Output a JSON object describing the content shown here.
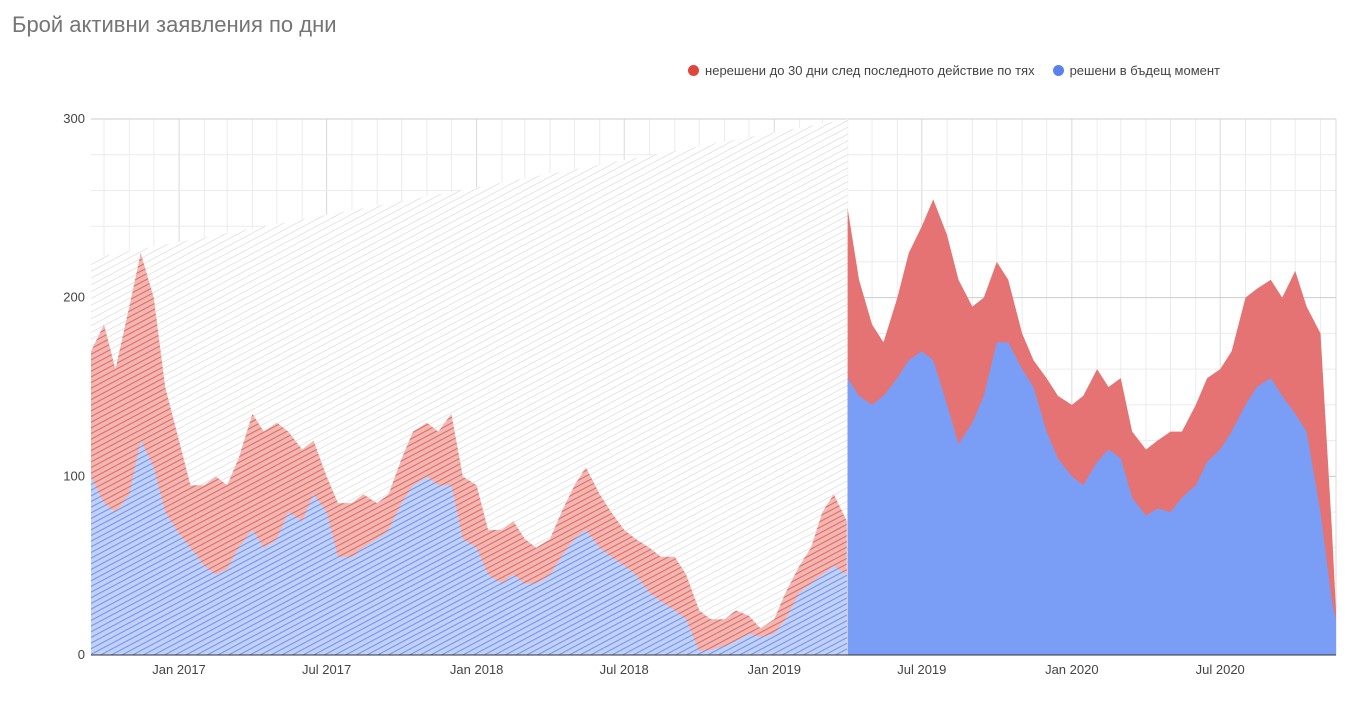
{
  "chart_data": {
    "type": "area",
    "stacked": true,
    "title": "Брой активни заявления по дни",
    "xlabel": "",
    "ylabel": "",
    "ylim": [
      0,
      300
    ],
    "yticks": [
      0,
      100,
      200,
      300
    ],
    "xrange": [
      "2016-09-15",
      "2020-11-20"
    ],
    "xticks": [
      {
        "date": "2017-01-01",
        "label": "Jan 2017"
      },
      {
        "date": "2017-07-01",
        "label": "Jul 2017"
      },
      {
        "date": "2018-01-01",
        "label": "Jan 2018"
      },
      {
        "date": "2018-07-01",
        "label": "Jul 2018"
      },
      {
        "date": "2019-01-01",
        "label": "Jan 2019"
      },
      {
        "date": "2019-07-01",
        "label": "Jul 2019"
      },
      {
        "date": "2020-01-01",
        "label": "Jan 2020"
      },
      {
        "date": "2020-07-01",
        "label": "Jul 2020"
      }
    ],
    "hatched_until": "2019-04-01",
    "legend_position": "top-right",
    "series": [
      {
        "name": "решени в бъдещ момент",
        "color": "#7a9ef5",
        "points": [
          [
            "2016-09-15",
            100
          ],
          [
            "2016-10-01",
            85
          ],
          [
            "2016-10-15",
            80
          ],
          [
            "2016-11-01",
            90
          ],
          [
            "2016-11-15",
            120
          ],
          [
            "2016-12-01",
            105
          ],
          [
            "2016-12-15",
            80
          ],
          [
            "2017-01-01",
            68
          ],
          [
            "2017-01-15",
            60
          ],
          [
            "2017-02-01",
            50
          ],
          [
            "2017-02-15",
            45
          ],
          [
            "2017-03-01",
            48
          ],
          [
            "2017-03-15",
            60
          ],
          [
            "2017-04-01",
            70
          ],
          [
            "2017-04-15",
            60
          ],
          [
            "2017-05-01",
            65
          ],
          [
            "2017-05-15",
            80
          ],
          [
            "2017-06-01",
            75
          ],
          [
            "2017-06-15",
            90
          ],
          [
            "2017-07-01",
            80
          ],
          [
            "2017-07-15",
            55
          ],
          [
            "2017-08-01",
            55
          ],
          [
            "2017-08-15",
            60
          ],
          [
            "2017-09-01",
            65
          ],
          [
            "2017-09-15",
            70
          ],
          [
            "2017-10-01",
            85
          ],
          [
            "2017-10-15",
            95
          ],
          [
            "2017-11-01",
            100
          ],
          [
            "2017-11-15",
            95
          ],
          [
            "2017-12-01",
            95
          ],
          [
            "2017-12-15",
            65
          ],
          [
            "2018-01-01",
            60
          ],
          [
            "2018-01-15",
            45
          ],
          [
            "2018-02-01",
            40
          ],
          [
            "2018-02-15",
            45
          ],
          [
            "2018-03-01",
            40
          ],
          [
            "2018-03-15",
            40
          ],
          [
            "2018-04-01",
            45
          ],
          [
            "2018-04-15",
            55
          ],
          [
            "2018-05-01",
            65
          ],
          [
            "2018-05-15",
            70
          ],
          [
            "2018-06-01",
            60
          ],
          [
            "2018-06-15",
            55
          ],
          [
            "2018-07-01",
            50
          ],
          [
            "2018-07-15",
            45
          ],
          [
            "2018-08-01",
            35
          ],
          [
            "2018-08-15",
            30
          ],
          [
            "2018-09-01",
            25
          ],
          [
            "2018-09-15",
            20
          ],
          [
            "2018-10-01",
            2
          ],
          [
            "2018-10-15",
            3
          ],
          [
            "2018-11-01",
            5
          ],
          [
            "2018-11-15",
            8
          ],
          [
            "2018-12-01",
            12
          ],
          [
            "2018-12-15",
            10
          ],
          [
            "2019-01-01",
            12
          ],
          [
            "2019-01-15",
            20
          ],
          [
            "2019-02-01",
            35
          ],
          [
            "2019-02-15",
            40
          ],
          [
            "2019-03-01",
            45
          ],
          [
            "2019-03-15",
            50
          ],
          [
            "2019-03-31",
            45
          ],
          [
            "2019-04-01",
            155
          ],
          [
            "2019-04-15",
            145
          ],
          [
            "2019-05-01",
            140
          ],
          [
            "2019-05-15",
            145
          ],
          [
            "2019-06-01",
            155
          ],
          [
            "2019-06-15",
            165
          ],
          [
            "2019-07-01",
            170
          ],
          [
            "2019-07-15",
            165
          ],
          [
            "2019-08-01",
            140
          ],
          [
            "2019-08-15",
            118
          ],
          [
            "2019-09-01",
            130
          ],
          [
            "2019-09-15",
            145
          ],
          [
            "2019-10-01",
            175
          ],
          [
            "2019-10-15",
            175
          ],
          [
            "2019-11-01",
            160
          ],
          [
            "2019-11-15",
            150
          ],
          [
            "2019-12-01",
            125
          ],
          [
            "2019-12-15",
            110
          ],
          [
            "2020-01-01",
            100
          ],
          [
            "2020-01-15",
            95
          ],
          [
            "2020-02-01",
            108
          ],
          [
            "2020-02-15",
            115
          ],
          [
            "2020-03-01",
            110
          ],
          [
            "2020-03-15",
            88
          ],
          [
            "2020-04-01",
            78
          ],
          [
            "2020-04-15",
            82
          ],
          [
            "2020-05-01",
            80
          ],
          [
            "2020-05-15",
            88
          ],
          [
            "2020-06-01",
            95
          ],
          [
            "2020-06-15",
            108
          ],
          [
            "2020-07-01",
            115
          ],
          [
            "2020-07-15",
            125
          ],
          [
            "2020-08-01",
            140
          ],
          [
            "2020-08-15",
            150
          ],
          [
            "2020-09-01",
            155
          ],
          [
            "2020-09-15",
            145
          ],
          [
            "2020-10-01",
            135
          ],
          [
            "2020-10-15",
            125
          ],
          [
            "2020-11-01",
            80
          ],
          [
            "2020-11-15",
            30
          ],
          [
            "2020-11-20",
            20
          ]
        ]
      },
      {
        "name": "нерешени до 30 дни след последното действие по тях",
        "color": "#e57373",
        "points": [
          [
            "2016-09-15",
            170
          ],
          [
            "2016-10-01",
            185
          ],
          [
            "2016-10-15",
            160
          ],
          [
            "2016-11-01",
            195
          ],
          [
            "2016-11-15",
            225
          ],
          [
            "2016-12-01",
            200
          ],
          [
            "2016-12-15",
            150
          ],
          [
            "2017-01-01",
            120
          ],
          [
            "2017-01-15",
            95
          ],
          [
            "2017-02-01",
            95
          ],
          [
            "2017-02-15",
            100
          ],
          [
            "2017-03-01",
            95
          ],
          [
            "2017-03-15",
            110
          ],
          [
            "2017-04-01",
            135
          ],
          [
            "2017-04-15",
            125
          ],
          [
            "2017-05-01",
            130
          ],
          [
            "2017-05-15",
            125
          ],
          [
            "2017-06-01",
            115
          ],
          [
            "2017-06-15",
            120
          ],
          [
            "2017-07-01",
            100
          ],
          [
            "2017-07-15",
            85
          ],
          [
            "2017-08-01",
            85
          ],
          [
            "2017-08-15",
            90
          ],
          [
            "2017-09-01",
            85
          ],
          [
            "2017-09-15",
            90
          ],
          [
            "2017-10-01",
            110
          ],
          [
            "2017-10-15",
            125
          ],
          [
            "2017-11-01",
            130
          ],
          [
            "2017-11-15",
            125
          ],
          [
            "2017-12-01",
            135
          ],
          [
            "2017-12-15",
            100
          ],
          [
            "2018-01-01",
            95
          ],
          [
            "2018-01-15",
            70
          ],
          [
            "2018-02-01",
            70
          ],
          [
            "2018-02-15",
            75
          ],
          [
            "2018-03-01",
            65
          ],
          [
            "2018-03-15",
            60
          ],
          [
            "2018-04-01",
            65
          ],
          [
            "2018-04-15",
            80
          ],
          [
            "2018-05-01",
            95
          ],
          [
            "2018-05-15",
            105
          ],
          [
            "2018-06-01",
            90
          ],
          [
            "2018-06-15",
            80
          ],
          [
            "2018-07-01",
            70
          ],
          [
            "2018-07-15",
            65
          ],
          [
            "2018-08-01",
            60
          ],
          [
            "2018-08-15",
            55
          ],
          [
            "2018-09-01",
            55
          ],
          [
            "2018-09-15",
            45
          ],
          [
            "2018-10-01",
            25
          ],
          [
            "2018-10-15",
            20
          ],
          [
            "2018-11-01",
            20
          ],
          [
            "2018-11-15",
            25
          ],
          [
            "2018-12-01",
            22
          ],
          [
            "2018-12-15",
            15
          ],
          [
            "2019-01-01",
            20
          ],
          [
            "2019-01-15",
            35
          ],
          [
            "2019-02-01",
            50
          ],
          [
            "2019-02-15",
            60
          ],
          [
            "2019-03-01",
            80
          ],
          [
            "2019-03-15",
            90
          ],
          [
            "2019-03-31",
            75
          ],
          [
            "2019-04-01",
            250
          ],
          [
            "2019-04-15",
            210
          ],
          [
            "2019-05-01",
            185
          ],
          [
            "2019-05-15",
            175
          ],
          [
            "2019-06-01",
            200
          ],
          [
            "2019-06-15",
            225
          ],
          [
            "2019-07-01",
            240
          ],
          [
            "2019-07-15",
            255
          ],
          [
            "2019-08-01",
            235
          ],
          [
            "2019-08-15",
            210
          ],
          [
            "2019-09-01",
            195
          ],
          [
            "2019-09-15",
            200
          ],
          [
            "2019-10-01",
            220
          ],
          [
            "2019-10-15",
            210
          ],
          [
            "2019-11-01",
            180
          ],
          [
            "2019-11-15",
            165
          ],
          [
            "2019-12-01",
            155
          ],
          [
            "2019-12-15",
            145
          ],
          [
            "2020-01-01",
            140
          ],
          [
            "2020-01-15",
            145
          ],
          [
            "2020-02-01",
            160
          ],
          [
            "2020-02-15",
            150
          ],
          [
            "2020-03-01",
            155
          ],
          [
            "2020-03-15",
            125
          ],
          [
            "2020-04-01",
            115
          ],
          [
            "2020-04-15",
            120
          ],
          [
            "2020-05-01",
            125
          ],
          [
            "2020-05-15",
            125
          ],
          [
            "2020-06-01",
            140
          ],
          [
            "2020-06-15",
            155
          ],
          [
            "2020-07-01",
            160
          ],
          [
            "2020-07-15",
            170
          ],
          [
            "2020-08-01",
            200
          ],
          [
            "2020-08-15",
            205
          ],
          [
            "2020-09-01",
            210
          ],
          [
            "2020-09-15",
            200
          ],
          [
            "2020-10-01",
            215
          ],
          [
            "2020-10-15",
            195
          ],
          [
            "2020-11-01",
            180
          ],
          [
            "2020-11-15",
            70
          ],
          [
            "2020-11-20",
            25
          ]
        ]
      }
    ]
  }
}
